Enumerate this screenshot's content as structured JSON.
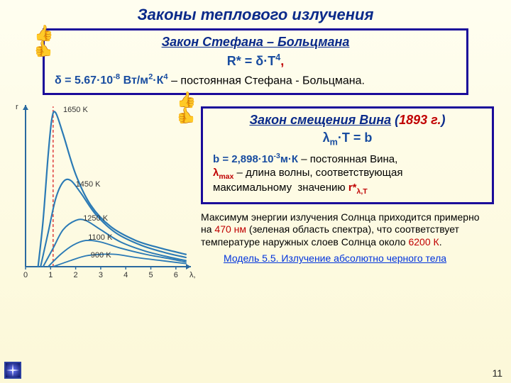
{
  "page_number": "11",
  "title": "Законы теплового излучения",
  "stefan": {
    "law_title": "Закон Стефана – Больцмана",
    "formula_html": "R* = δ·T<sup>4</sup><span class='red'>,</span>",
    "const_html": "<span class='blue'><b>δ = 5.67·10<sup>-8</sup> Вт/м<sup>2</sup>·К<sup>4</sup></b></span> – постоянная Стефана - Больцмана."
  },
  "wien": {
    "law_title_html": "<span style='text-decoration:underline'>Закон смещения Вина</span> (<span class='red'>1893 г.</span>)",
    "formula_html": "λ<sub>m</sub>·T = b",
    "const_html": "<span class='blue'><b>b = 2,898·10<sup>-3</sup>м·К</b></span> – постоянная Вина,",
    "lambda_html": "<span class='red'><b>λ<sub>max</sub></b></span> – длина волны, соответствующая максимальному &nbsp;значению <span class='red'><b>r*<sub>λ,T</sub></b></span>"
  },
  "sun_note_html": "Максимум энергии излучения Солнца приходится примерно на <span class='red'>470 нм</span> (зеленая область спектра), что соответствует температуре наружных слоев Солнца около <span class='red'>6200 К</span>.",
  "model_link": "Модель 5.5.  Излучение абсолютно черного тела",
  "chart": {
    "type": "line",
    "background_color": "#fdfae8",
    "axis_color": "#2a6aa0",
    "axis_width": 2,
    "x_label": "λ, 10³ нм",
    "y_label": "r",
    "xlim": [
      0,
      6.6
    ],
    "ylim": [
      0,
      105
    ],
    "x_ticks": [
      0,
      1,
      2,
      3,
      4,
      5,
      6
    ],
    "peak_line": {
      "x": 1.1,
      "y_top": 104,
      "color": "#e04040",
      "dash": "4,3"
    },
    "curves": [
      {
        "temp": "1650 K",
        "label_xy": [
          1.5,
          0
        ],
        "color": "#2b7ab5",
        "width": 2.2,
        "points": [
          [
            0.5,
            0
          ],
          [
            0.7,
            30
          ],
          [
            0.9,
            72
          ],
          [
            1.05,
            96
          ],
          [
            1.2,
            100
          ],
          [
            1.5,
            86
          ],
          [
            2.0,
            60
          ],
          [
            2.6,
            40
          ],
          [
            3.4,
            26
          ],
          [
            4.4,
            17
          ],
          [
            5.4,
            12
          ],
          [
            6.4,
            8
          ]
        ]
      },
      {
        "temp": "1450 K",
        "label_xy": [
          2.0,
          46
        ],
        "color": "#2b7ab5",
        "width": 2.1,
        "points": [
          [
            0.6,
            0
          ],
          [
            0.9,
            22
          ],
          [
            1.2,
            44
          ],
          [
            1.5,
            55
          ],
          [
            1.8,
            56
          ],
          [
            2.2,
            48
          ],
          [
            2.8,
            34
          ],
          [
            3.6,
            22
          ],
          [
            4.6,
            14
          ],
          [
            5.6,
            9
          ],
          [
            6.4,
            6
          ]
        ]
      },
      {
        "temp": "1250 K",
        "label_xy": [
          2.3,
          67
        ],
        "color": "#2b7ab5",
        "width": 2.0,
        "points": [
          [
            0.7,
            0
          ],
          [
            1.1,
            12
          ],
          [
            1.5,
            24
          ],
          [
            2.0,
            30
          ],
          [
            2.4,
            30
          ],
          [
            3.0,
            24
          ],
          [
            3.8,
            16
          ],
          [
            4.8,
            10
          ],
          [
            5.8,
            6
          ],
          [
            6.4,
            4
          ]
        ]
      },
      {
        "temp": "1100 K",
        "label_xy": [
          2.5,
          79
        ],
        "color": "#2b7ab5",
        "width": 1.9,
        "points": [
          [
            0.9,
            0
          ],
          [
            1.4,
            8
          ],
          [
            1.9,
            14
          ],
          [
            2.4,
            17
          ],
          [
            3.0,
            16
          ],
          [
            3.8,
            12
          ],
          [
            4.8,
            8
          ],
          [
            5.8,
            5
          ],
          [
            6.4,
            3
          ]
        ]
      },
      {
        "temp": "900 K",
        "label_xy": [
          2.6,
          90
        ],
        "color": "#2b7ab5",
        "width": 1.8,
        "points": [
          [
            1.1,
            0
          ],
          [
            1.8,
            4
          ],
          [
            2.4,
            7
          ],
          [
            3.0,
            8
          ],
          [
            3.6,
            8
          ],
          [
            4.4,
            6
          ],
          [
            5.4,
            4
          ],
          [
            6.4,
            2
          ]
        ]
      }
    ]
  }
}
